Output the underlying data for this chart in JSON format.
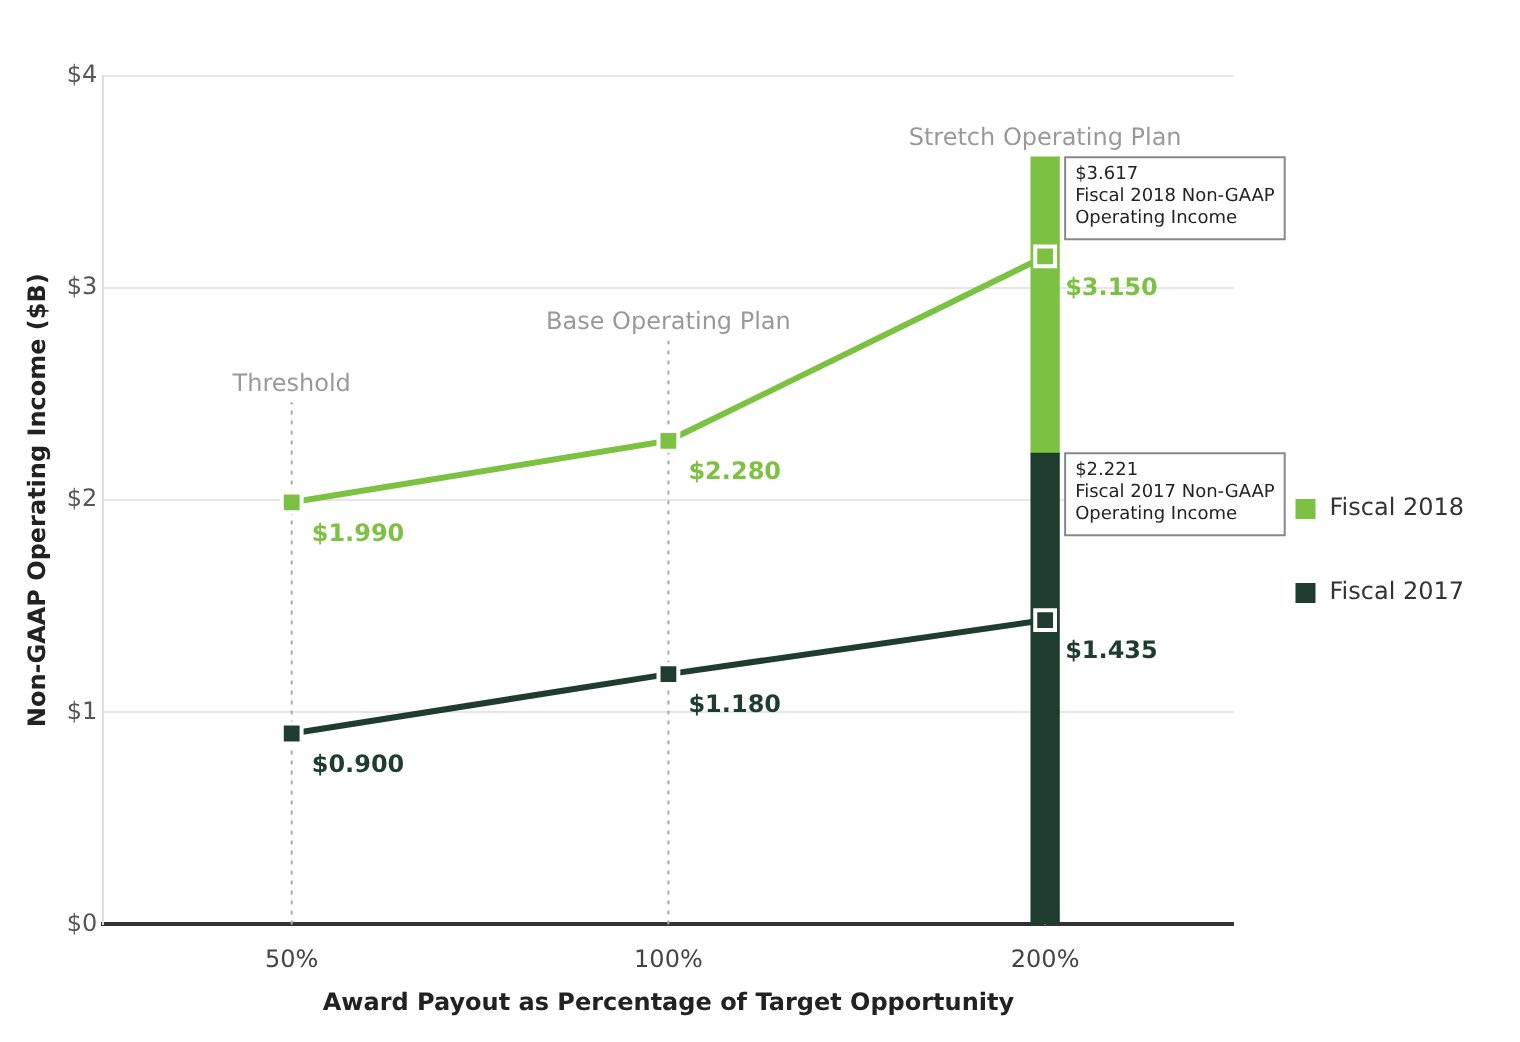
{
  "chart_data": {
    "type": "line",
    "xlabel": "Award Payout as Percentage of Target Opportunity",
    "ylabel": "Non-GAAP Operating Income ($B)",
    "categories": [
      "50%",
      "100%",
      "200%"
    ],
    "series": [
      {
        "type": "bar",
        "color": "#1e3d2e",
        "values": [
          null,
          null,
          2.221
        ]
      },
      {
        "type": "bar",
        "color": "#7dc142",
        "values": [
          null,
          null,
          1.396
        ]
      },
      {
        "name": "Fiscal 2018",
        "color": "#7dc142",
        "values": [
          1.99,
          2.28,
          3.15
        ],
        "value_labels": [
          "$1.990",
          "$2.280",
          "$3.150"
        ]
      },
      {
        "name": "Fiscal 2017",
        "color": "#1e3d2e",
        "values": [
          0.9,
          1.18,
          1.435
        ],
        "value_labels": [
          "$0.900",
          "$1.180",
          "$1.435"
        ]
      }
    ],
    "stacked": true,
    "ylim": [
      0,
      4
    ],
    "yticks": [
      {
        "value": 0,
        "label": "$0"
      },
      {
        "value": 1,
        "label": "$1"
      },
      {
        "value": 2,
        "label": "$2"
      },
      {
        "value": 3,
        "label": "$3"
      },
      {
        "value": 4,
        "label": "$4"
      }
    ],
    "ref_lines": [
      {
        "axis": "x",
        "value": "50%",
        "label": "Threshold",
        "line_style": "dotted"
      },
      {
        "axis": "x",
        "value": "100%",
        "label": "Base Operating Plan",
        "line_style": "dotted"
      },
      {
        "axis": "x",
        "value": "200%",
        "label": "Stretch Operating Plan",
        "line_style": "dotted"
      }
    ],
    "annotations": [
      {
        "text": "$3.617\nFiscal 2018 Non-GAAP\nOperating Income",
        "x": "200%",
        "y": 3.617
      },
      {
        "text": "$2.221\nFiscal 2017 Non-GAAP\nOperating Income",
        "x": "200%",
        "y": 2.221
      }
    ],
    "grid": "y",
    "legend": "right",
    "marker": "square",
    "line_style": "solid"
  }
}
